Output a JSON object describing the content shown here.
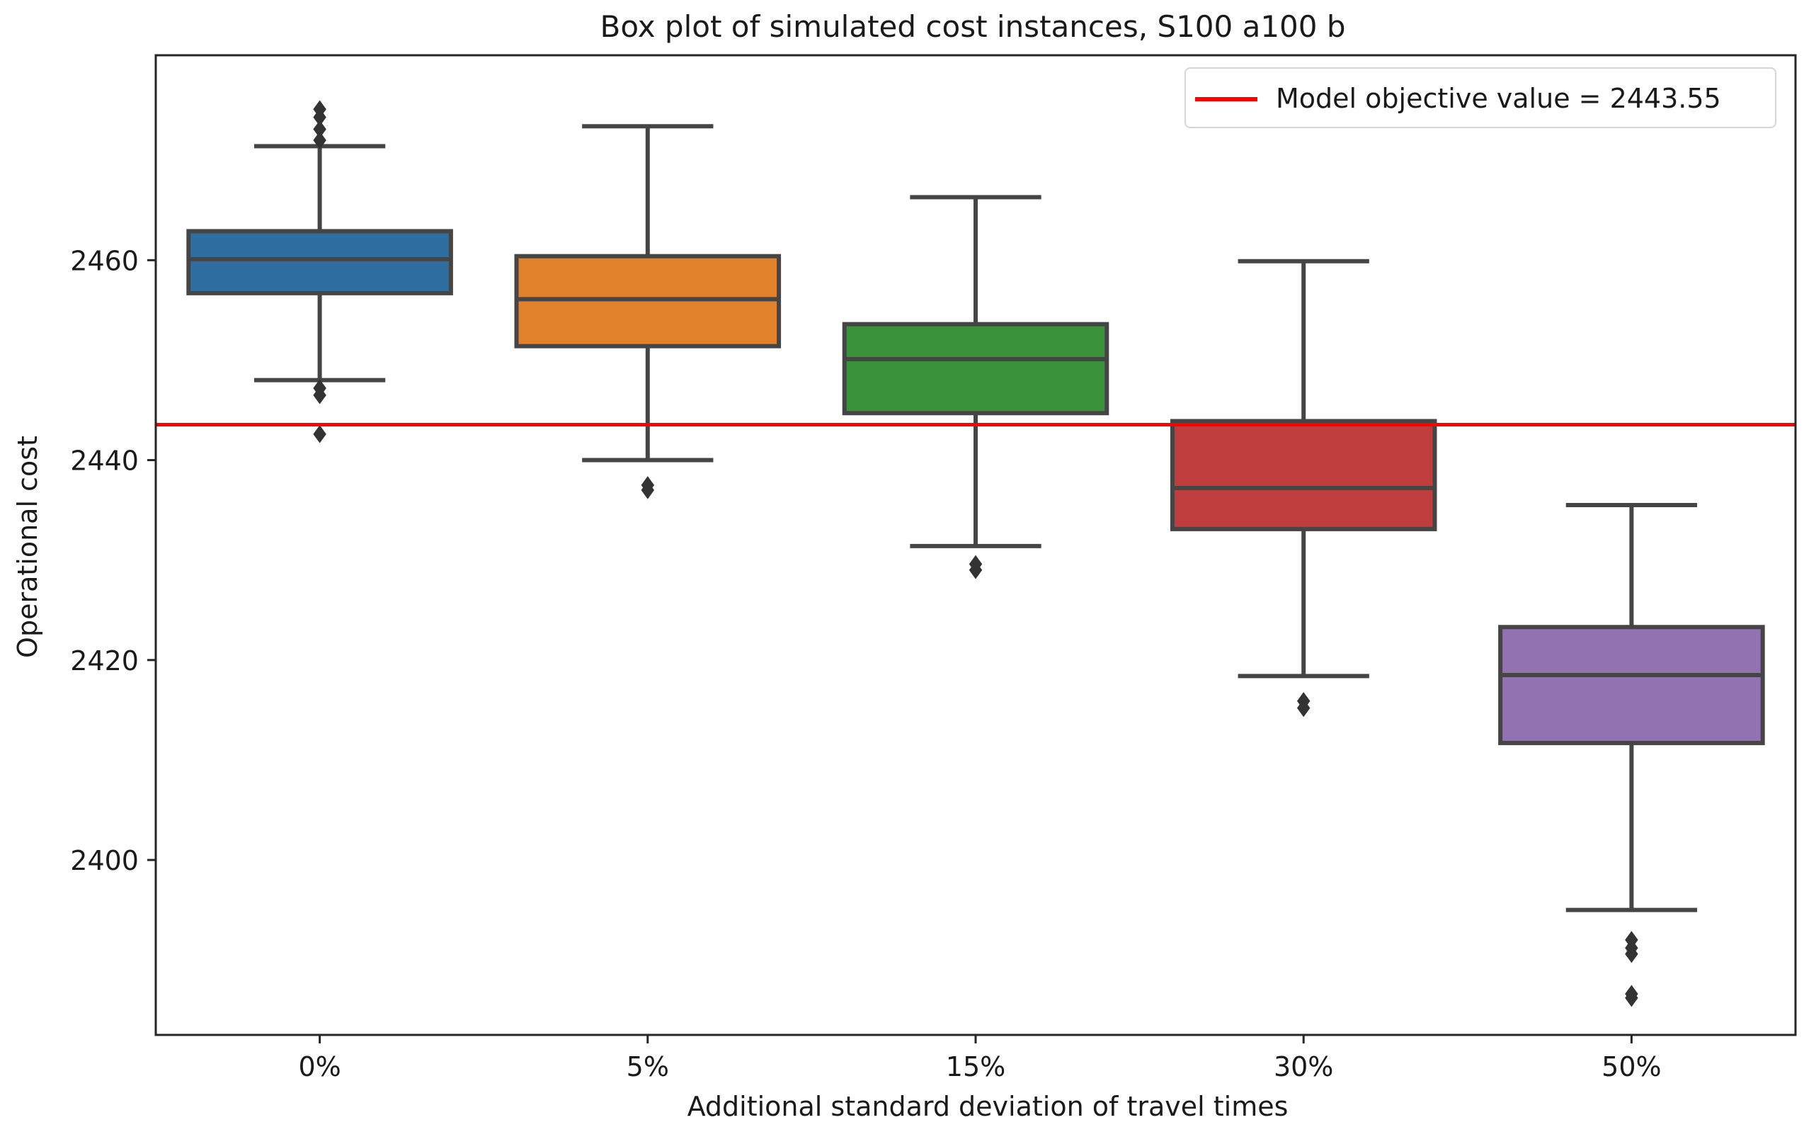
{
  "chart_data": {
    "type": "box",
    "title": "Box plot of simulated cost instances, S100 a100 b",
    "xlabel": "Additional standard deviation of travel times",
    "ylabel": "Operational cost",
    "ylim": [
      2382.5,
      2480.5
    ],
    "yticks": [
      2400,
      2420,
      2440,
      2460
    ],
    "ytick_labels": [
      "2400",
      "2420",
      "2440",
      "2460"
    ],
    "categories": [
      "0%",
      "5%",
      "15%",
      "30%",
      "50%"
    ],
    "boxes": [
      {
        "category": "0%",
        "color": "#2f6ea1",
        "whislo": 2448.0,
        "q1": 2456.7,
        "med": 2460.1,
        "q3": 2462.9,
        "whishi": 2471.4,
        "fliers": [
          2475.1,
          2474.3,
          2473.1,
          2472.0,
          2447.2,
          2446.5,
          2442.6
        ]
      },
      {
        "category": "5%",
        "color": "#e1812c",
        "whislo": 2440.0,
        "q1": 2451.4,
        "med": 2456.1,
        "q3": 2460.4,
        "whishi": 2473.4,
        "fliers": [
          2437.5,
          2437.0
        ]
      },
      {
        "category": "15%",
        "color": "#3a923a",
        "whislo": 2431.4,
        "q1": 2444.7,
        "med": 2450.1,
        "q3": 2453.6,
        "whishi": 2466.3,
        "fliers": [
          2429.6,
          2429.0
        ]
      },
      {
        "category": "30%",
        "color": "#c03d3e",
        "whislo": 2418.4,
        "q1": 2433.1,
        "med": 2437.2,
        "q3": 2443.9,
        "whishi": 2459.9,
        "fliers": [
          2415.9,
          2415.2
        ]
      },
      {
        "category": "50%",
        "color": "#9372b2",
        "whislo": 2395.0,
        "q1": 2411.7,
        "med": 2418.5,
        "q3": 2423.3,
        "whishi": 2435.5,
        "fliers": [
          2392.0,
          2391.2,
          2390.6,
          2386.6,
          2386.2
        ]
      }
    ],
    "reference_line": {
      "value": 2443.55,
      "color": "#ff0000",
      "label": "Model objective value = 2443.55"
    },
    "legend": {
      "location": "upper right"
    },
    "grid": false
  }
}
